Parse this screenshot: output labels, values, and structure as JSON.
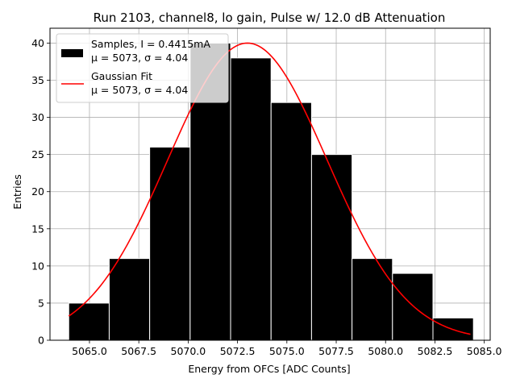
{
  "chart_data": {
    "type": "bar",
    "title": "Run 2103, channel8, lo gain, Pulse w/ 12.0 dB Attenuation",
    "xlabel": "Energy from OFCs [ADC Counts]",
    "ylabel": "Entries",
    "xlim": [
      5063.0,
      5085.3
    ],
    "ylim": [
      0,
      42
    ],
    "xticks": [
      5065.0,
      5067.5,
      5070.0,
      5072.5,
      5075.0,
      5077.5,
      5080.0,
      5082.5,
      5085.0
    ],
    "xtick_labels": [
      "5065.0",
      "5067.5",
      "5070.0",
      "5072.5",
      "5075.0",
      "5077.5",
      "5080.0",
      "5082.5",
      "5085.0"
    ],
    "yticks": [
      0,
      5,
      10,
      15,
      20,
      25,
      30,
      35,
      40
    ],
    "ytick_labels": [
      "0",
      "5",
      "10",
      "15",
      "20",
      "25",
      "30",
      "35",
      "40"
    ],
    "grid": true,
    "bar_color": "#000000",
    "bar_edge_color": "#ffffff",
    "bins": [
      {
        "x0": 5063.95,
        "x1": 5066.0,
        "count": 5
      },
      {
        "x0": 5066.0,
        "x1": 5068.05,
        "count": 11
      },
      {
        "x0": 5068.05,
        "x1": 5070.1,
        "count": 26
      },
      {
        "x0": 5070.1,
        "x1": 5072.15,
        "count": 40
      },
      {
        "x0": 5072.15,
        "x1": 5074.2,
        "count": 38
      },
      {
        "x0": 5074.2,
        "x1": 5076.25,
        "count": 32
      },
      {
        "x0": 5076.25,
        "x1": 5078.3,
        "count": 25
      },
      {
        "x0": 5078.3,
        "x1": 5080.35,
        "count": 11
      },
      {
        "x0": 5080.35,
        "x1": 5082.4,
        "count": 9
      },
      {
        "x0": 5082.4,
        "x1": 5084.45,
        "count": 3
      }
    ],
    "fit": {
      "name": "Gaussian Fit",
      "color": "#ff0000",
      "mu": 5073.0,
      "sigma": 4.04,
      "amplitude": 40.0,
      "x_range": [
        5063.95,
        5084.3
      ]
    },
    "legend": {
      "placement": "upper-left",
      "entries": [
        {
          "line1": "Samples, I = 0.4415mA",
          "line2": "μ = 5073, σ = 4.04",
          "kind": "patch",
          "color": "#000000"
        },
        {
          "line1": "Gaussian Fit",
          "line2": "μ = 5073, σ = 4.04",
          "kind": "line",
          "color": "#ff0000"
        }
      ]
    }
  }
}
